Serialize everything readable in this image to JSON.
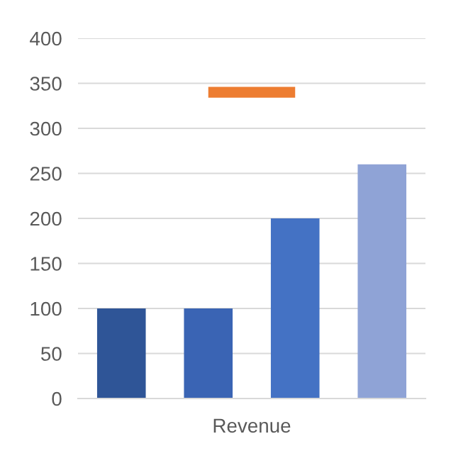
{
  "chart_data": {
    "type": "bar",
    "categories": [
      null,
      null,
      null,
      null
    ],
    "xlabel": "Revenue",
    "series": [
      {
        "colors": [
          "#2f5597",
          "#3a64b4",
          "#4472c4",
          "#8fa3d6"
        ],
        "values": [
          100,
          100,
          200,
          260
        ]
      },
      {
        "type": "line",
        "color": "#ed7d31",
        "values": [
          null,
          340,
          340,
          null
        ]
      }
    ],
    "ylim": [
      0,
      400
    ],
    "yticks": [
      0,
      50,
      100,
      150,
      200,
      250,
      300,
      350,
      400
    ],
    "grid": "y"
  }
}
